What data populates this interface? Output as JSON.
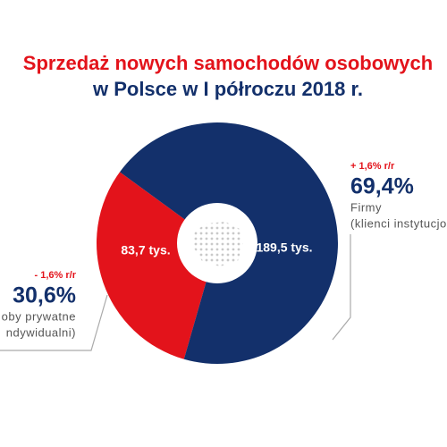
{
  "chart_data": {
    "type": "pie",
    "title_lines": [
      "Sprzedaż nowych samochodów osobowych",
      "w Polsce w I półroczu 2018 r."
    ],
    "categories": [
      "oby prywatne",
      "Firmy"
    ],
    "descriptions": [
      "ndywidualni)",
      "(klienci instytucjo"
    ],
    "values": [
      30.6,
      69.4
    ],
    "value_labels": [
      "30,6%",
      "69,4%"
    ],
    "counts": [
      83.7,
      189.5
    ],
    "count_labels": [
      "83,7 tys.",
      "189,5 tys."
    ],
    "changes": [
      "- 1,6% r/r",
      "+ 1,6% r/r"
    ],
    "colors": [
      "#e3131b",
      "#13306b"
    ]
  }
}
